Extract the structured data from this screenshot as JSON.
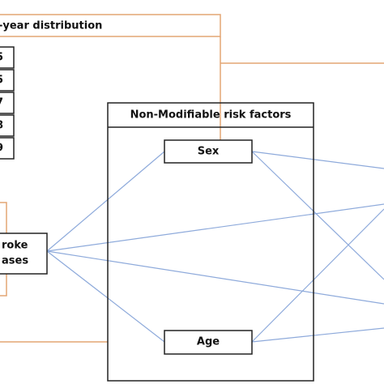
{
  "distribution": {
    "title": "-year distribution",
    "items": [
      "5",
      "5",
      "7",
      "8",
      "9"
    ]
  },
  "cases": {
    "label_lines": [
      "roke",
      "ases"
    ]
  },
  "risk_factors": {
    "title": "Non-Modifiable risk factors",
    "nodes": [
      {
        "label": "Sex"
      },
      {
        "label": "Age"
      }
    ]
  }
}
